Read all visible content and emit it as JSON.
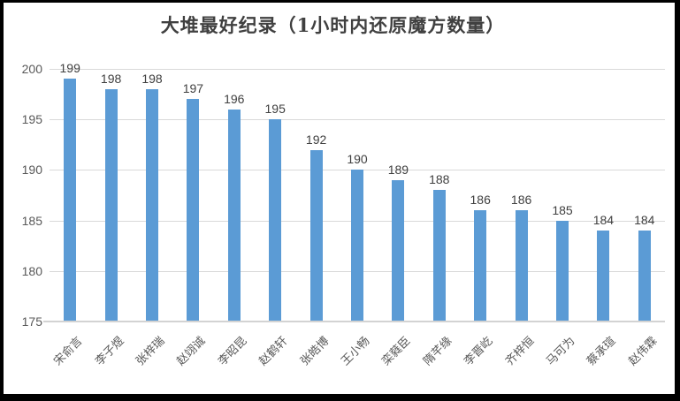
{
  "chart_data": {
    "type": "bar",
    "title": "大堆最好纪录（1小时内还原魔方数量）",
    "categories": [
      "宋俞言",
      "李子煜",
      "张梓瑞",
      "赵翊诚",
      "李昭昆",
      "赵鹤轩",
      "张皓博",
      "王小畅",
      "栾蕤臣",
      "隋芊缘",
      "李晋屹",
      "齐梓恒",
      "马可为",
      "蔡承瑄",
      "赵伟霖"
    ],
    "values": [
      199,
      198,
      198,
      197,
      196,
      195,
      192,
      190,
      189,
      188,
      186,
      186,
      185,
      184,
      184
    ],
    "xlabel": "",
    "ylabel": "",
    "ylim": [
      175,
      200
    ],
    "ytick_step": 5,
    "yticks": [
      175,
      180,
      185,
      190,
      195,
      200
    ],
    "grid": true,
    "legend": false,
    "bar_color": "#5b9bd5",
    "gridline_color": "#d9d9d9",
    "title_color": "#404040",
    "value_label_color": "#404040",
    "axis_label_color": "#595959"
  }
}
